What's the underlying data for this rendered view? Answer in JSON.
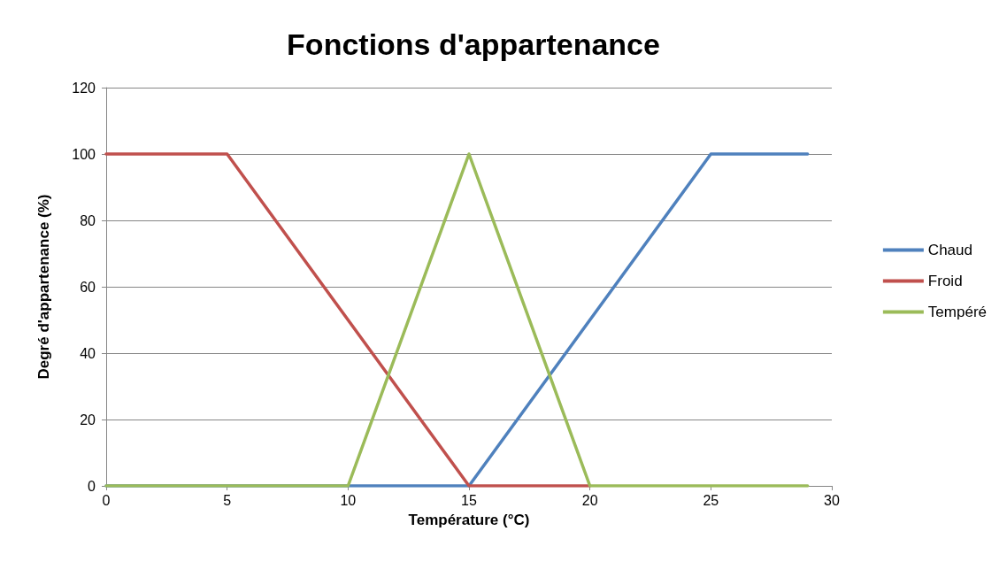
{
  "chart_data": {
    "type": "line",
    "title": "Fonctions d'appartenance",
    "xlabel": "Température (°C)",
    "ylabel": "Degré d'appartenance (%)",
    "series": [
      {
        "name": "Chaud",
        "color": "#4f81bd",
        "x": [
          0,
          15,
          25,
          29
        ],
        "values": [
          0,
          0,
          100,
          100
        ]
      },
      {
        "name": "Froid",
        "color": "#c0504d",
        "x": [
          0,
          5,
          15,
          20
        ],
        "values": [
          100,
          100,
          0,
          0
        ]
      },
      {
        "name": "Tempéré",
        "color": "#9bbb59",
        "x": [
          0,
          10,
          15,
          20,
          29
        ],
        "values": [
          0,
          0,
          100,
          0,
          0
        ]
      }
    ],
    "xlim": [
      0,
      30
    ],
    "xticks": [
      0,
      5,
      10,
      15,
      20,
      25,
      30
    ],
    "ylim": [
      0,
      120
    ],
    "yticks": [
      0,
      20,
      40,
      60,
      80,
      100,
      120
    ],
    "grid": "y",
    "legend": "right",
    "marker": "none",
    "line_style": "solid"
  }
}
